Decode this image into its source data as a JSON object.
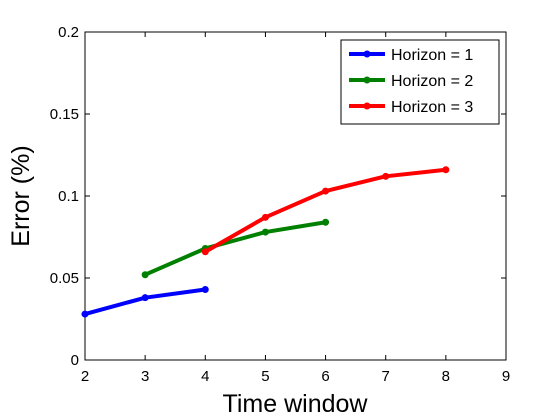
{
  "chart_data": {
    "type": "line",
    "title": "",
    "xlabel": "Time window",
    "ylabel": "Error (%)",
    "xlim": [
      2,
      9
    ],
    "ylim": [
      0,
      0.2
    ],
    "xticks": [
      "2",
      "3",
      "4",
      "5",
      "6",
      "7",
      "8",
      "9"
    ],
    "yticks": [
      "0",
      "0.05",
      "0.1",
      "0.15",
      "0.2"
    ],
    "grid": false,
    "legend_position": "top-right",
    "series": [
      {
        "name": "Horizon = 1",
        "color": "#0000ff",
        "x": [
          2,
          3,
          4
        ],
        "y": [
          0.028,
          0.038,
          0.043
        ]
      },
      {
        "name": "Horizon = 2",
        "color": "#008000",
        "x": [
          3,
          4,
          5,
          6
        ],
        "y": [
          0.052,
          0.068,
          0.078,
          0.084
        ]
      },
      {
        "name": "Horizon = 3",
        "color": "#ff0000",
        "x": [
          4,
          5,
          6,
          7,
          8
        ],
        "y": [
          0.066,
          0.087,
          0.103,
          0.112,
          0.116
        ]
      }
    ]
  }
}
